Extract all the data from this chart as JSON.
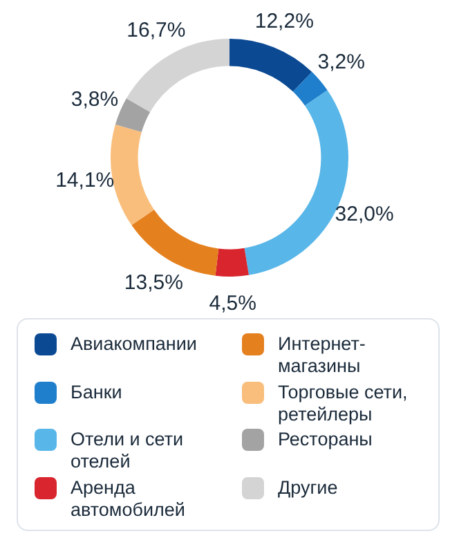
{
  "chart_data": {
    "type": "donut",
    "categories": [
      "Авиакомпании",
      "Банки",
      "Отели и сети отелей",
      "Аренда автомобилей",
      "Интернет-магазины",
      "Торговые сети, ретейлеры",
      "Рестораны",
      "Другие"
    ],
    "values": [
      12.2,
      3.2,
      32.0,
      4.5,
      13.5,
      14.1,
      3.8,
      16.7
    ],
    "value_labels": [
      "12,2%",
      "3,2%",
      "32,0%",
      "4,5%",
      "13,5%",
      "14,1%",
      "3,8%",
      "16,7%"
    ],
    "colors": [
      "#0b4a93",
      "#1f7fcc",
      "#58b6e8",
      "#d9252d",
      "#e5801f",
      "#f9be7c",
      "#a3a3a3",
      "#d4d4d4"
    ],
    "legend": "bottom"
  }
}
